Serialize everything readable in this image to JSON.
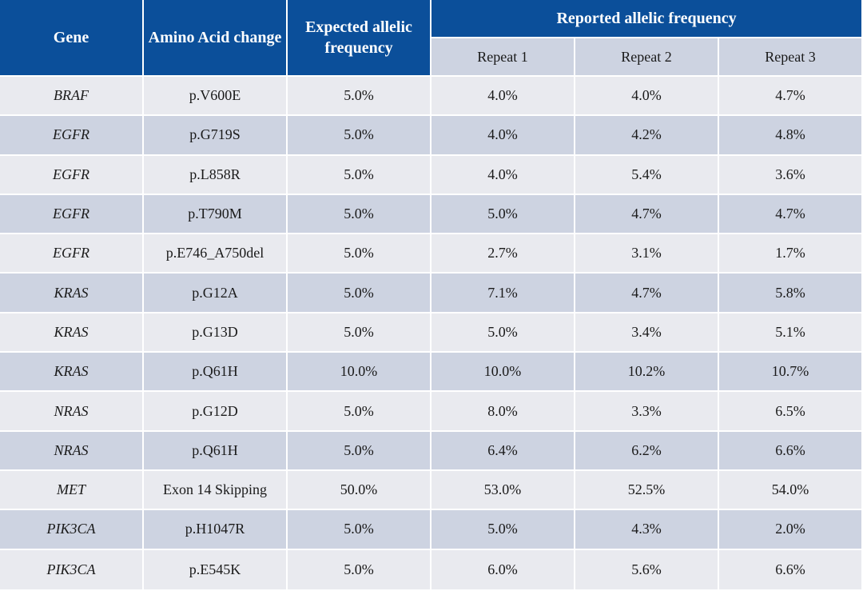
{
  "table": {
    "headers": {
      "gene": "Gene",
      "amino_acid": "Amino Acid change",
      "expected": "Expected allelic frequency",
      "reported": "Reported allelic frequency",
      "repeat1": "Repeat 1",
      "repeat2": "Repeat 2",
      "repeat3": "Repeat 3"
    },
    "rows": [
      {
        "gene": "BRAF",
        "change": "p.V600E",
        "expected": "5.0%",
        "r1": "4.0%",
        "r2": "4.0%",
        "r3": "4.7%"
      },
      {
        "gene": "EGFR",
        "change": "p.G719S",
        "expected": "5.0%",
        "r1": "4.0%",
        "r2": "4.2%",
        "r3": "4.8%"
      },
      {
        "gene": "EGFR",
        "change": "p.L858R",
        "expected": "5.0%",
        "r1": "4.0%",
        "r2": "5.4%",
        "r3": "3.6%"
      },
      {
        "gene": "EGFR",
        "change": "p.T790M",
        "expected": "5.0%",
        "r1": "5.0%",
        "r2": "4.7%",
        "r3": "4.7%"
      },
      {
        "gene": "EGFR",
        "change": "p.E746_A750del",
        "expected": "5.0%",
        "r1": "2.7%",
        "r2": "3.1%",
        "r3": "1.7%"
      },
      {
        "gene": "KRAS",
        "change": "p.G12A",
        "expected": "5.0%",
        "r1": "7.1%",
        "r2": "4.7%",
        "r3": "5.8%"
      },
      {
        "gene": "KRAS",
        "change": "p.G13D",
        "expected": "5.0%",
        "r1": "5.0%",
        "r2": "3.4%",
        "r3": "5.1%"
      },
      {
        "gene": "KRAS",
        "change": "p.Q61H",
        "expected": "10.0%",
        "r1": "10.0%",
        "r2": "10.2%",
        "r3": "10.7%"
      },
      {
        "gene": "NRAS",
        "change": "p.G12D",
        "expected": "5.0%",
        "r1": "8.0%",
        "r2": "3.3%",
        "r3": "6.5%"
      },
      {
        "gene": "NRAS",
        "change": "p.Q61H",
        "expected": "5.0%",
        "r1": "6.4%",
        "r2": "6.2%",
        "r3": "6.6%"
      },
      {
        "gene": "MET",
        "change": "Exon 14 Skipping",
        "expected": "50.0%",
        "r1": "53.0%",
        "r2": "52.5%",
        "r3": "54.0%"
      },
      {
        "gene": "PIK3CA",
        "change": "p.H1047R",
        "expected": "5.0%",
        "r1": "5.0%",
        "r2": "4.3%",
        "r3": "2.0%"
      },
      {
        "gene": "PIK3CA",
        "change": "p.E545K",
        "expected": "5.0%",
        "r1": "6.0%",
        "r2": "5.6%",
        "r3": "6.6%"
      }
    ]
  },
  "colors": {
    "header_bg": "#0b4f9a",
    "header_text": "#ffffff",
    "row_light": "#e9eaef",
    "row_dark": "#cdd3e1",
    "grid": "#ffffff"
  }
}
